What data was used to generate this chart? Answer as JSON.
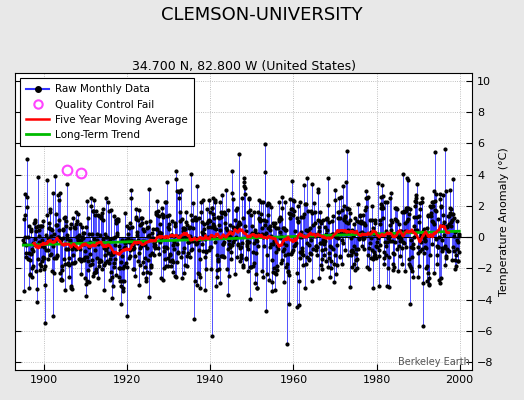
{
  "title": "CLEMSON-UNIVERSITY",
  "subtitle": "34.700 N, 82.800 W (United States)",
  "ylabel": "Temperature Anomaly (°C)",
  "watermark": "Berkeley Earth",
  "xlim": [
    1893,
    2003
  ],
  "ylim": [
    -8.5,
    10.5
  ],
  "yticks": [
    -8,
    -6,
    -4,
    -2,
    0,
    2,
    4,
    6,
    8,
    10
  ],
  "xticks": [
    1900,
    1920,
    1940,
    1960,
    1980,
    2000
  ],
  "x_start": 1895.0,
  "n_months": 1260,
  "background_color": "#e8e8e8",
  "plot_bg": "#ffffff",
  "bar_color": "#3333ff",
  "zero_line_color": "#000000",
  "ma_color": "#ff0000",
  "trend_color": "#00bb00",
  "dot_color": "#000000",
  "qc_fail_color": "#ff44ff",
  "seed": 17,
  "qc_fail_years": [
    1905.5,
    1909.0
  ],
  "qc_fail_values": [
    4.3,
    4.1
  ],
  "ma_window": 60,
  "bar_linewidth": 0.7,
  "dot_size": 2.0,
  "title_fontsize": 13,
  "subtitle_fontsize": 9,
  "tick_fontsize": 8,
  "legend_fontsize": 7.5
}
